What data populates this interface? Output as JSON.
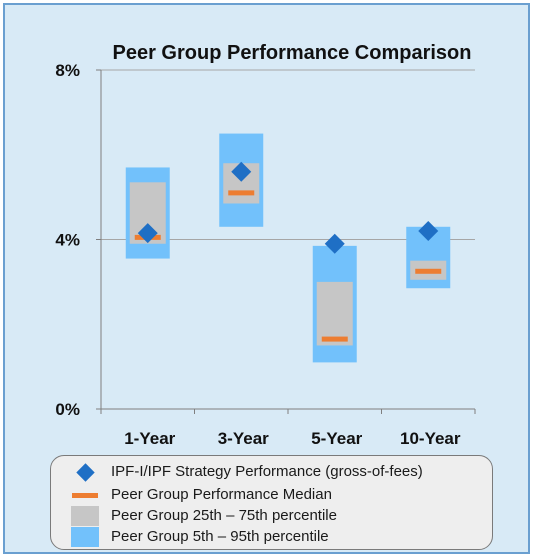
{
  "chart_data": {
    "type": "box",
    "title": "Peer Group Performance Comparison",
    "xlabel": "",
    "ylabel": "",
    "categories": [
      "1-Year",
      "3-Year",
      "5-Year",
      "10-Year"
    ],
    "ylim": [
      0,
      8
    ],
    "yticks": [
      0,
      4,
      8
    ],
    "ytick_labels": [
      "0%",
      "4%",
      "8%"
    ],
    "grid": true,
    "series": [
      {
        "name": "IPF-I/IPF Strategy Performance (gross-of-fees)",
        "kind": "point",
        "values": [
          4.15,
          5.6,
          3.9,
          4.2
        ]
      },
      {
        "name": "Peer Group Performance Median",
        "kind": "median",
        "values": [
          4.05,
          5.1,
          1.65,
          3.25
        ]
      },
      {
        "name": "Peer Group 25th – 75th percentile",
        "kind": "range",
        "low": [
          3.9,
          4.85,
          1.5,
          3.05
        ],
        "high": [
          5.35,
          5.8,
          3.0,
          3.5
        ]
      },
      {
        "name": "Peer Group 5th – 95th percentile",
        "kind": "range",
        "low": [
          3.55,
          4.3,
          1.1,
          2.85
        ],
        "high": [
          5.7,
          6.5,
          3.85,
          4.3
        ]
      }
    ],
    "colors": {
      "point": "#1f6fc5",
      "median": "#ed7d31",
      "inner_range": "#c6c6c6",
      "outer_range": "#72c1fb",
      "background": "#d8eaf6",
      "border": "#6a9fd0",
      "gridline": "#a6a6a6"
    },
    "legend_position": "bottom"
  }
}
